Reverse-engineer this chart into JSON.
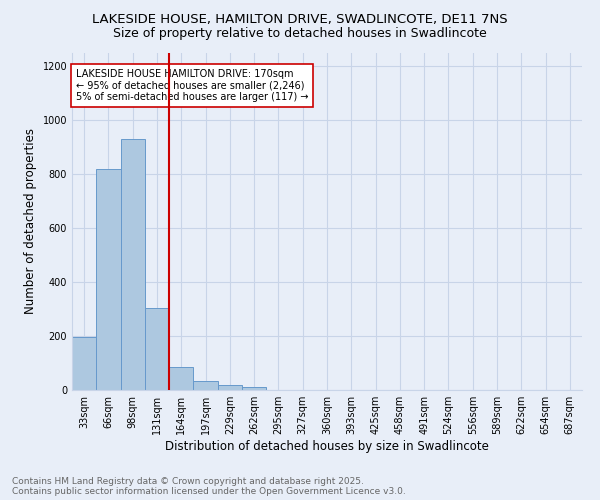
{
  "title": "LAKESIDE HOUSE, HAMILTON DRIVE, SWADLINCOTE, DE11 7NS",
  "subtitle": "Size of property relative to detached houses in Swadlincote",
  "xlabel": "Distribution of detached houses by size in Swadlincote",
  "ylabel": "Number of detached properties",
  "bin_labels": [
    "33sqm",
    "66sqm",
    "98sqm",
    "131sqm",
    "164sqm",
    "197sqm",
    "229sqm",
    "262sqm",
    "295sqm",
    "327sqm",
    "360sqm",
    "393sqm",
    "425sqm",
    "458sqm",
    "491sqm",
    "524sqm",
    "556sqm",
    "589sqm",
    "622sqm",
    "654sqm",
    "687sqm"
  ],
  "bar_values": [
    197,
    820,
    930,
    305,
    85,
    35,
    20,
    10,
    0,
    0,
    0,
    0,
    0,
    0,
    0,
    0,
    0,
    0,
    0,
    0,
    0
  ],
  "bar_color": "#adc8e0",
  "bar_edge_color": "#6699cc",
  "vline_x": 4.0,
  "vline_color": "#cc0000",
  "annotation_text": "LAKESIDE HOUSE HAMILTON DRIVE: 170sqm\n← 95% of detached houses are smaller (2,246)\n5% of semi-detached houses are larger (117) →",
  "annotation_box_color": "#ffffff",
  "annotation_box_edge": "#cc0000",
  "ylim": [
    0,
    1250
  ],
  "yticks": [
    0,
    200,
    400,
    600,
    800,
    1000,
    1200
  ],
  "background_color": "#e8eef8",
  "grid_color": "#c8d4e8",
  "footer_text": "Contains HM Land Registry data © Crown copyright and database right 2025.\nContains public sector information licensed under the Open Government Licence v3.0.",
  "title_fontsize": 9.5,
  "subtitle_fontsize": 9,
  "axis_label_fontsize": 8.5,
  "tick_fontsize": 7,
  "footer_fontsize": 6.5,
  "annotation_fontsize": 7
}
